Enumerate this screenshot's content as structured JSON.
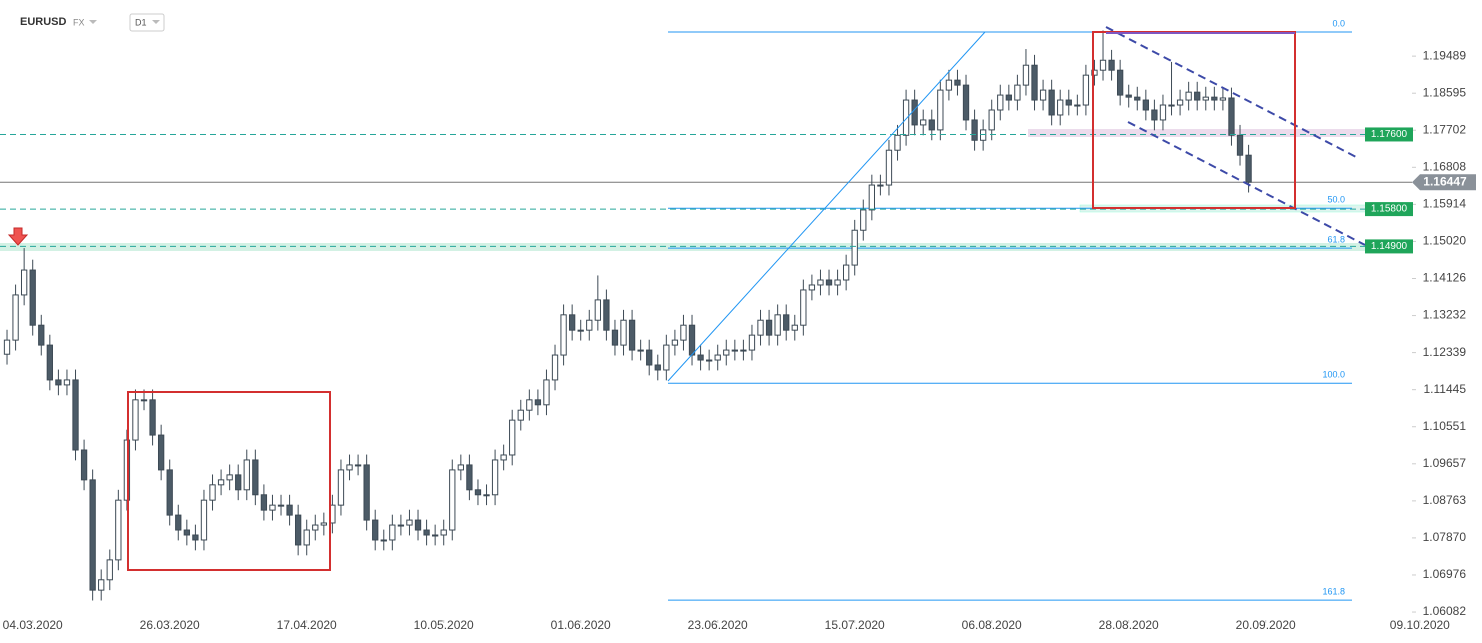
{
  "chart_data": {
    "type": "candlestick",
    "symbol": "EURUSD",
    "market": "FX",
    "interval": "D1",
    "bull_color": "#ffffff",
    "bear_color": "#4c5b67",
    "open": [
      1.123,
      1.1264,
      1.1373,
      1.1433,
      1.13,
      1.1252,
      1.1168,
      1.1156,
      1.1168,
      1.0999,
      1.0927,
      1.0661,
      1.0686,
      1.0734,
      1.0878,
      1.1023,
      1.112,
      1.112,
      1.1035,
      1.0951,
      1.0842,
      1.0806,
      1.0794,
      1.0782,
      1.0878,
      1.0915,
      1.0927,
      1.0939,
      1.0903,
      1.0975,
      1.0891,
      1.0854,
      1.0866,
      1.0866,
      1.0842,
      1.077,
      1.0806,
      1.0818,
      1.0823,
      1.0866,
      1.0951,
      1.0963,
      1.0963,
      1.083,
      1.0782,
      1.0782,
      1.0818,
      1.0818,
      1.083,
      1.0806,
      1.0794,
      1.0794,
      1.0806,
      1.0951,
      1.0963,
      1.0903,
      1.0891,
      1.0891,
      1.0975,
      1.0987,
      1.1071,
      1.1095,
      1.112,
      1.1108,
      1.1168,
      1.1228,
      1.1325,
      1.1288,
      1.1288,
      1.1312,
      1.1361,
      1.1288,
      1.1252,
      1.1312,
      1.124,
      1.124,
      1.1204,
      1.1192,
      1.1252,
      1.1264,
      1.13,
      1.1228,
      1.1216,
      1.1216,
      1.1228,
      1.124,
      1.124,
      1.124,
      1.1276,
      1.1312,
      1.1276,
      1.1325,
      1.1288,
      1.13,
      1.1385,
      1.1397,
      1.1409,
      1.1397,
      1.1409,
      1.1445,
      1.1529,
      1.1578,
      1.1638,
      1.1638,
      1.1722,
      1.1758,
      1.1843,
      1.1783,
      1.1795,
      1.1771,
      1.1867,
      1.1891,
      1.1879,
      1.1795,
      1.1746,
      1.1771,
      1.1819,
      1.1855,
      1.1843,
      1.1879,
      1.1927,
      1.1843,
      1.1867,
      1.1807,
      1.1843,
      1.1831,
      1.1831,
      1.1903,
      1.1915,
      1.1939,
      1.1915,
      1.1855,
      1.185,
      1.1843,
      1.1819,
      1.1795,
      1.1831,
      1.1831,
      1.1843,
      1.1862,
      1.1843,
      1.185,
      1.1843,
      1.1848,
      1.1758,
      1.171
    ],
    "high": [
      1.1289,
      1.1398,
      1.1486,
      1.1458,
      1.1325,
      1.1277,
      1.1193,
      1.1193,
      1.1193,
      1.1024,
      1.0952,
      1.0711,
      1.0759,
      1.0903,
      1.1048,
      1.1145,
      1.1145,
      1.1145,
      1.106,
      1.0976,
      1.0867,
      1.0831,
      1.0819,
      1.0903,
      1.094,
      1.0952,
      1.0964,
      1.0964,
      1.1,
      1.1,
      1.0916,
      1.0891,
      1.0891,
      1.0891,
      1.0867,
      1.0831,
      1.0843,
      1.0848,
      1.0891,
      1.0976,
      1.0988,
      1.0988,
      1.0988,
      1.0855,
      1.0807,
      1.0843,
      1.0843,
      1.0855,
      1.0855,
      1.0831,
      1.0819,
      1.0831,
      1.0976,
      1.0988,
      1.0988,
      1.0928,
      1.0916,
      1.1,
      1.1012,
      1.1096,
      1.112,
      1.1145,
      1.1145,
      1.1193,
      1.1253,
      1.135,
      1.135,
      1.1313,
      1.1337,
      1.142,
      1.1386,
      1.1313,
      1.1337,
      1.1337,
      1.1265,
      1.1265,
      1.1229,
      1.1277,
      1.1289,
      1.1325,
      1.1325,
      1.1253,
      1.1241,
      1.1253,
      1.1265,
      1.1265,
      1.1265,
      1.1301,
      1.1337,
      1.1337,
      1.135,
      1.135,
      1.1325,
      1.141,
      1.1422,
      1.1434,
      1.1434,
      1.1434,
      1.147,
      1.1554,
      1.1603,
      1.1663,
      1.1663,
      1.1747,
      1.1783,
      1.1868,
      1.1868,
      1.182,
      1.182,
      1.1892,
      1.1916,
      1.1916,
      1.1904,
      1.182,
      1.1796,
      1.1844,
      1.188,
      1.188,
      1.1904,
      1.1966,
      1.1952,
      1.1892,
      1.1892,
      1.1868,
      1.1868,
      1.1856,
      1.1928,
      1.194,
      1.2011,
      1.1964,
      1.194,
      1.188,
      1.1875,
      1.1868,
      1.1844,
      1.1856,
      1.1935,
      1.1868,
      1.1887,
      1.1887,
      1.1875,
      1.1875,
      1.1873,
      1.1873,
      1.1783,
      1.1735
    ],
    "low": [
      1.1205,
      1.1239,
      1.1348,
      1.1275,
      1.1227,
      1.1143,
      1.1131,
      1.1131,
      1.0974,
      1.0902,
      1.0636,
      1.0636,
      1.0661,
      1.0709,
      1.0853,
      1.0998,
      1.1095,
      1.101,
      1.0926,
      1.0817,
      1.0781,
      1.0769,
      1.0757,
      1.0757,
      1.0853,
      1.089,
      1.0902,
      1.0878,
      1.0878,
      1.0866,
      1.0829,
      1.0829,
      1.0841,
      1.0817,
      1.0745,
      1.0745,
      1.0781,
      1.0793,
      1.0798,
      1.0841,
      1.0926,
      1.0938,
      1.0805,
      1.0757,
      1.0757,
      1.0757,
      1.0793,
      1.0793,
      1.0781,
      1.0769,
      1.0769,
      1.0769,
      1.0781,
      1.0926,
      1.0878,
      1.0866,
      1.0866,
      1.0866,
      1.095,
      1.0962,
      1.1046,
      1.107,
      1.1083,
      1.1083,
      1.1143,
      1.1203,
      1.1263,
      1.1263,
      1.1263,
      1.1287,
      1.1263,
      1.1227,
      1.1227,
      1.1215,
      1.1215,
      1.1179,
      1.1167,
      1.1167,
      1.1227,
      1.1239,
      1.1203,
      1.1191,
      1.1191,
      1.1191,
      1.1203,
      1.1215,
      1.1215,
      1.1215,
      1.1251,
      1.1251,
      1.1251,
      1.1263,
      1.1263,
      1.1275,
      1.136,
      1.1372,
      1.1372,
      1.1372,
      1.1384,
      1.142,
      1.1504,
      1.1553,
      1.1613,
      1.1613,
      1.1697,
      1.1733,
      1.1758,
      1.1758,
      1.1746,
      1.1746,
      1.1842,
      1.1854,
      1.177,
      1.1721,
      1.1721,
      1.1746,
      1.1794,
      1.1818,
      1.1818,
      1.1854,
      1.1818,
      1.1818,
      1.1782,
      1.1782,
      1.1806,
      1.1806,
      1.1806,
      1.1878,
      1.189,
      1.189,
      1.183,
      1.1825,
      1.1818,
      1.1794,
      1.177,
      1.177,
      1.1806,
      1.1806,
      1.1818,
      1.1818,
      1.1818,
      1.1818,
      1.1818,
      1.1733,
      1.1685,
      1.162
    ],
    "close": [
      1.1264,
      1.1373,
      1.1433,
      1.13,
      1.1252,
      1.1168,
      1.1156,
      1.1168,
      1.0999,
      1.0927,
      1.0661,
      1.0686,
      1.0734,
      1.0878,
      1.1023,
      1.112,
      1.112,
      1.1035,
      1.0951,
      1.0842,
      1.0806,
      1.0794,
      1.0782,
      1.0878,
      1.0915,
      1.0927,
      1.0939,
      1.0903,
      1.0975,
      1.0891,
      1.0854,
      1.0866,
      1.0866,
      1.0842,
      1.077,
      1.0806,
      1.0818,
      1.0823,
      1.0866,
      1.0951,
      1.0963,
      1.0963,
      1.083,
      1.0782,
      1.0782,
      1.0818,
      1.0818,
      1.083,
      1.0806,
      1.0794,
      1.0794,
      1.0806,
      1.0951,
      1.0963,
      1.0903,
      1.0891,
      1.0891,
      1.0975,
      1.0987,
      1.1071,
      1.1095,
      1.112,
      1.1108,
      1.1168,
      1.1228,
      1.1325,
      1.1288,
      1.1288,
      1.1312,
      1.1361,
      1.1288,
      1.1252,
      1.1312,
      1.124,
      1.124,
      1.1204,
      1.1192,
      1.1252,
      1.1264,
      1.13,
      1.1228,
      1.1216,
      1.1216,
      1.1228,
      1.124,
      1.124,
      1.124,
      1.1276,
      1.1312,
      1.1276,
      1.1325,
      1.1288,
      1.13,
      1.1385,
      1.1397,
      1.1409,
      1.1397,
      1.1409,
      1.1445,
      1.1529,
      1.1578,
      1.1638,
      1.1638,
      1.1722,
      1.1758,
      1.1843,
      1.1783,
      1.1795,
      1.1771,
      1.1867,
      1.1891,
      1.1879,
      1.1795,
      1.1746,
      1.1771,
      1.1819,
      1.1855,
      1.1843,
      1.1879,
      1.1927,
      1.1843,
      1.1867,
      1.1807,
      1.1843,
      1.1831,
      1.1831,
      1.1903,
      1.1915,
      1.1939,
      1.1915,
      1.1855,
      1.185,
      1.1843,
      1.1819,
      1.1795,
      1.1831,
      1.1831,
      1.1843,
      1.1862,
      1.1843,
      1.185,
      1.1843,
      1.1848,
      1.1758,
      1.171,
      1.1645
    ],
    "xlim": [
      -0.82,
      172.26
    ],
    "xticks": [
      {
        "value": 3,
        "label": "04.03.2020"
      },
      {
        "value": 19,
        "label": "26.03.2020"
      },
      {
        "value": 35,
        "label": "17.04.2020"
      },
      {
        "value": 51,
        "label": "10.05.2020"
      },
      {
        "value": 67,
        "label": "01.06.2020"
      },
      {
        "value": 83,
        "label": "23.06.2020"
      },
      {
        "value": 99,
        "label": "15.07.2020"
      },
      {
        "value": 115,
        "label": "06.08.2020"
      },
      {
        "value": 131,
        "label": "28.08.2020"
      },
      {
        "value": 147,
        "label": "20.09.2020"
      },
      {
        "value": 165,
        "label": "09.10.2020"
      }
    ],
    "ylim": [
      1.0589,
      1.2065
    ],
    "yticks": [
      1.06082,
      1.06976,
      {
        "value": 1.0787,
        "label": "1.07870"
      },
      1.08763,
      1.09657,
      1.10551,
      1.11445,
      1.12339,
      1.13232,
      1.14126,
      {
        "value": 1.1502,
        "label": "1.15020"
      },
      1.15914,
      1.16808,
      1.17702,
      1.18595,
      1.19489
    ],
    "levels": [
      {
        "value": 1.176,
        "label": "1.17600"
      },
      {
        "value": 1.158,
        "label": "1.15800"
      },
      {
        "value": 1.149,
        "label": "1.14900"
      }
    ],
    "current_price": {
      "value": 1.16447,
      "label": "1.16447"
    },
    "fib_levels": [
      {
        "label": "0.0",
        "value": 1.2007
      },
      {
        "label": "50.0",
        "value": 1.1582
      },
      {
        "label": "61.8",
        "value": 1.1486
      },
      {
        "label": "100.0",
        "value": 1.116
      },
      {
        "label": "161.8",
        "value": 1.0637
      }
    ]
  }
}
